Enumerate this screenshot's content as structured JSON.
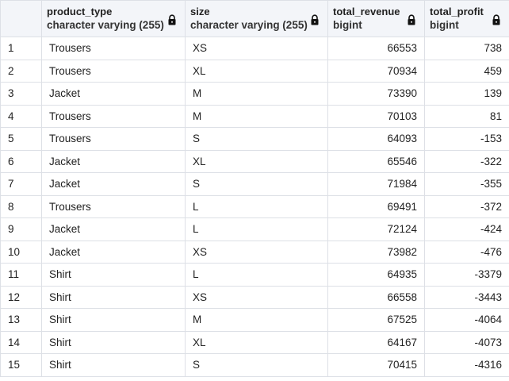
{
  "columns": [
    {
      "name": "product_type",
      "type": "character varying (255)",
      "icon": "lock-icon"
    },
    {
      "name": "size",
      "type": "character varying (255)",
      "icon": "lock-icon"
    },
    {
      "name": "total_revenue",
      "type": "bigint",
      "icon": "lock-icon"
    },
    {
      "name": "total_profit",
      "type": "bigint",
      "icon": "lock-icon"
    }
  ],
  "rows": [
    {
      "n": "1",
      "product_type": "Trousers",
      "size": "XS",
      "total_revenue": "66553",
      "total_profit": "738"
    },
    {
      "n": "2",
      "product_type": "Trousers",
      "size": "XL",
      "total_revenue": "70934",
      "total_profit": "459"
    },
    {
      "n": "3",
      "product_type": "Jacket",
      "size": "M",
      "total_revenue": "73390",
      "total_profit": "139"
    },
    {
      "n": "4",
      "product_type": "Trousers",
      "size": "M",
      "total_revenue": "70103",
      "total_profit": "81"
    },
    {
      "n": "5",
      "product_type": "Trousers",
      "size": "S",
      "total_revenue": "64093",
      "total_profit": "-153"
    },
    {
      "n": "6",
      "product_type": "Jacket",
      "size": "XL",
      "total_revenue": "65546",
      "total_profit": "-322"
    },
    {
      "n": "7",
      "product_type": "Jacket",
      "size": "S",
      "total_revenue": "71984",
      "total_profit": "-355"
    },
    {
      "n": "8",
      "product_type": "Trousers",
      "size": "L",
      "total_revenue": "69491",
      "total_profit": "-372"
    },
    {
      "n": "9",
      "product_type": "Jacket",
      "size": "L",
      "total_revenue": "72124",
      "total_profit": "-424"
    },
    {
      "n": "10",
      "product_type": "Jacket",
      "size": "XS",
      "total_revenue": "73982",
      "total_profit": "-476"
    },
    {
      "n": "11",
      "product_type": "Shirt",
      "size": "L",
      "total_revenue": "64935",
      "total_profit": "-3379"
    },
    {
      "n": "12",
      "product_type": "Shirt",
      "size": "XS",
      "total_revenue": "66558",
      "total_profit": "-3443"
    },
    {
      "n": "13",
      "product_type": "Shirt",
      "size": "M",
      "total_revenue": "67525",
      "total_profit": "-4064"
    },
    {
      "n": "14",
      "product_type": "Shirt",
      "size": "XL",
      "total_revenue": "64167",
      "total_profit": "-4073"
    },
    {
      "n": "15",
      "product_type": "Shirt",
      "size": "S",
      "total_revenue": "70415",
      "total_profit": "-4316"
    }
  ],
  "colors": {
    "header_bg": "#f3f5f9",
    "border": "#dde0e6",
    "text": "#222222"
  }
}
